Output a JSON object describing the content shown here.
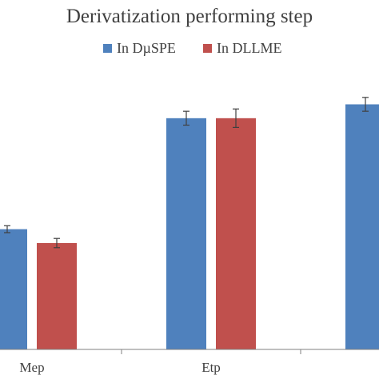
{
  "chart_data": {
    "type": "bar",
    "title": "Derivatization performing step",
    "xlabel": "",
    "ylabel": "",
    "categories": [
      "Mep",
      "Etp",
      ""
    ],
    "series": [
      {
        "name": "In DµSPE",
        "color": "#4f81bd",
        "values": [
          0.52,
          1.0,
          1.06
        ],
        "errors": [
          0.015,
          0.03,
          0.03
        ]
      },
      {
        "name": "In DLLME",
        "color": "#c0504d",
        "values": [
          0.46,
          1.0,
          null
        ],
        "errors": [
          0.02,
          0.04,
          null
        ]
      }
    ],
    "ylim": [
      0,
      1.2
    ],
    "grid": false,
    "legend_position": "top-center"
  }
}
